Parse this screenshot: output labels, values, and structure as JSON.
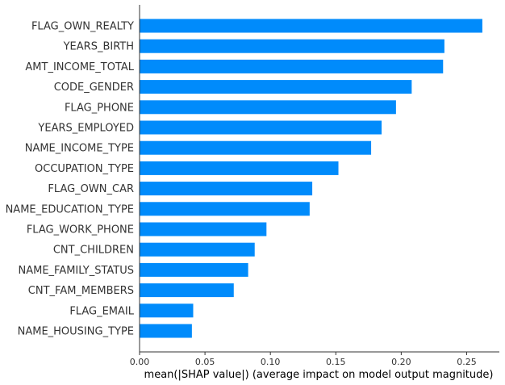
{
  "chart_data": {
    "type": "bar",
    "orientation": "horizontal",
    "categories": [
      "FLAG_OWN_REALTY",
      "YEARS_BIRTH",
      "AMT_INCOME_TOTAL",
      "CODE_GENDER",
      "FLAG_PHONE",
      "YEARS_EMPLOYED",
      "NAME_INCOME_TYPE",
      "OCCUPATION_TYPE",
      "FLAG_OWN_CAR",
      "NAME_EDUCATION_TYPE",
      "FLAG_WORK_PHONE",
      "CNT_CHILDREN",
      "NAME_FAMILY_STATUS",
      "CNT_FAM_MEMBERS",
      "FLAG_EMAIL",
      "NAME_HOUSING_TYPE"
    ],
    "values": [
      0.262,
      0.233,
      0.232,
      0.208,
      0.196,
      0.185,
      0.177,
      0.152,
      0.132,
      0.13,
      0.097,
      0.088,
      0.083,
      0.072,
      0.041,
      0.04
    ],
    "xticks": [
      "0.00",
      "0.05",
      "0.10",
      "0.15",
      "0.20",
      "0.25"
    ],
    "xlim": [
      0,
      0.275
    ],
    "xlabel": "mean(|SHAP value|) (average impact on model output magnitude)",
    "ylabel": "",
    "title": "",
    "bar_color": "#008bfb",
    "axis_color": "#333333",
    "grid": false
  }
}
